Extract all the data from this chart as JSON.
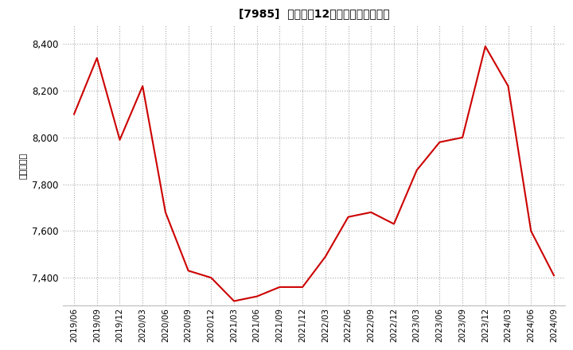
{
  "title": "[7985]  売上高の12か月移動合計の推移",
  "ylabel": "（百万円）",
  "line_color": "#cc0000",
  "background_color": "#ffffff",
  "grid_color": "#aaaaaa",
  "ylim": [
    7280,
    8480
  ],
  "yticks": [
    7400,
    7600,
    7800,
    8000,
    8200,
    8400
  ],
  "dates": [
    "2019/06",
    "2019/09",
    "2019/12",
    "2020/03",
    "2020/06",
    "2020/09",
    "2020/12",
    "2021/03",
    "2021/06",
    "2021/09",
    "2021/12",
    "2022/03",
    "2022/06",
    "2022/09",
    "2022/12",
    "2023/03",
    "2023/06",
    "2023/09",
    "2023/12",
    "2024/03",
    "2024/06",
    "2024/09"
  ],
  "values": [
    8100,
    8340,
    7990,
    8220,
    7680,
    7430,
    7400,
    7300,
    7320,
    7360,
    7360,
    7490,
    7660,
    7680,
    7630,
    7860,
    7980,
    8000,
    8390,
    8220,
    7600,
    7410
  ]
}
